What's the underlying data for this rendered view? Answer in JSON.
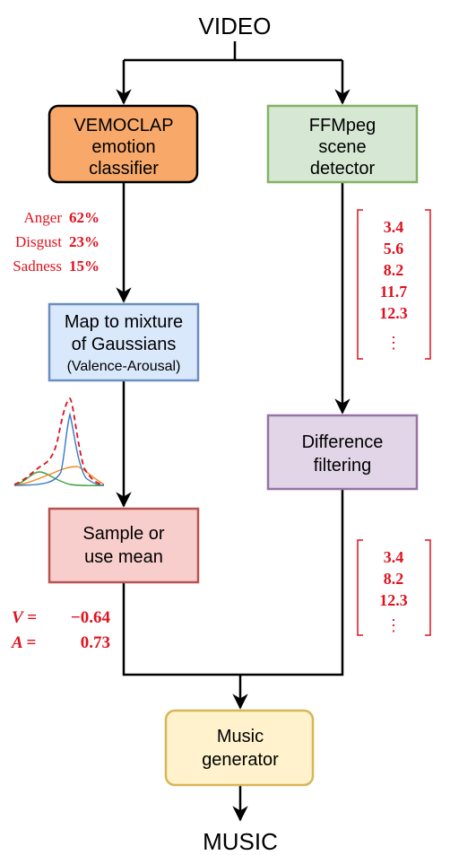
{
  "title": "VIDEO",
  "output": "MUSIC",
  "nodes": {
    "vemoclap": [
      "VEMOCLAP",
      "emotion",
      "classifier"
    ],
    "ffmpeg": [
      "FFMpeg",
      "scene",
      "detector"
    ],
    "map": [
      "Map to mixture",
      "of Gaussians",
      "(Valence-Arousal)"
    ],
    "difference": [
      "Difference",
      "filtering"
    ],
    "sample": [
      "Sample or",
      "use mean"
    ],
    "music": [
      "Music",
      "generator"
    ]
  },
  "emotions": [
    {
      "label": "Anger",
      "value": "62%"
    },
    {
      "label": "Disgust",
      "value": "23%"
    },
    {
      "label": "Sadness",
      "value": "15%"
    }
  ],
  "scene_times": [
    "3.4",
    "5.6",
    "8.2",
    "11.7",
    "12.3",
    "⋮"
  ],
  "filtered_times": [
    "3.4",
    "8.2",
    "12.3",
    "⋮"
  ],
  "va_values": [
    {
      "label": "V =",
      "value": "−0.64"
    },
    {
      "label": "A =",
      "value": "0.73"
    }
  ],
  "colors": {
    "red_text": "#e0121e",
    "orange_fill": "#f8a96a",
    "green_fill": "#d6e8d4",
    "green_stroke": "#82b366",
    "blue_fill": "#dae8fc",
    "blue_stroke": "#6c8ebf",
    "purple_fill": "#e1d5e7",
    "purple_stroke": "#9673a6",
    "pink_fill": "#f8cecc",
    "pink_stroke": "#b85450",
    "yellow_fill": "#fff2cc",
    "yellow_stroke": "#d6b656"
  }
}
